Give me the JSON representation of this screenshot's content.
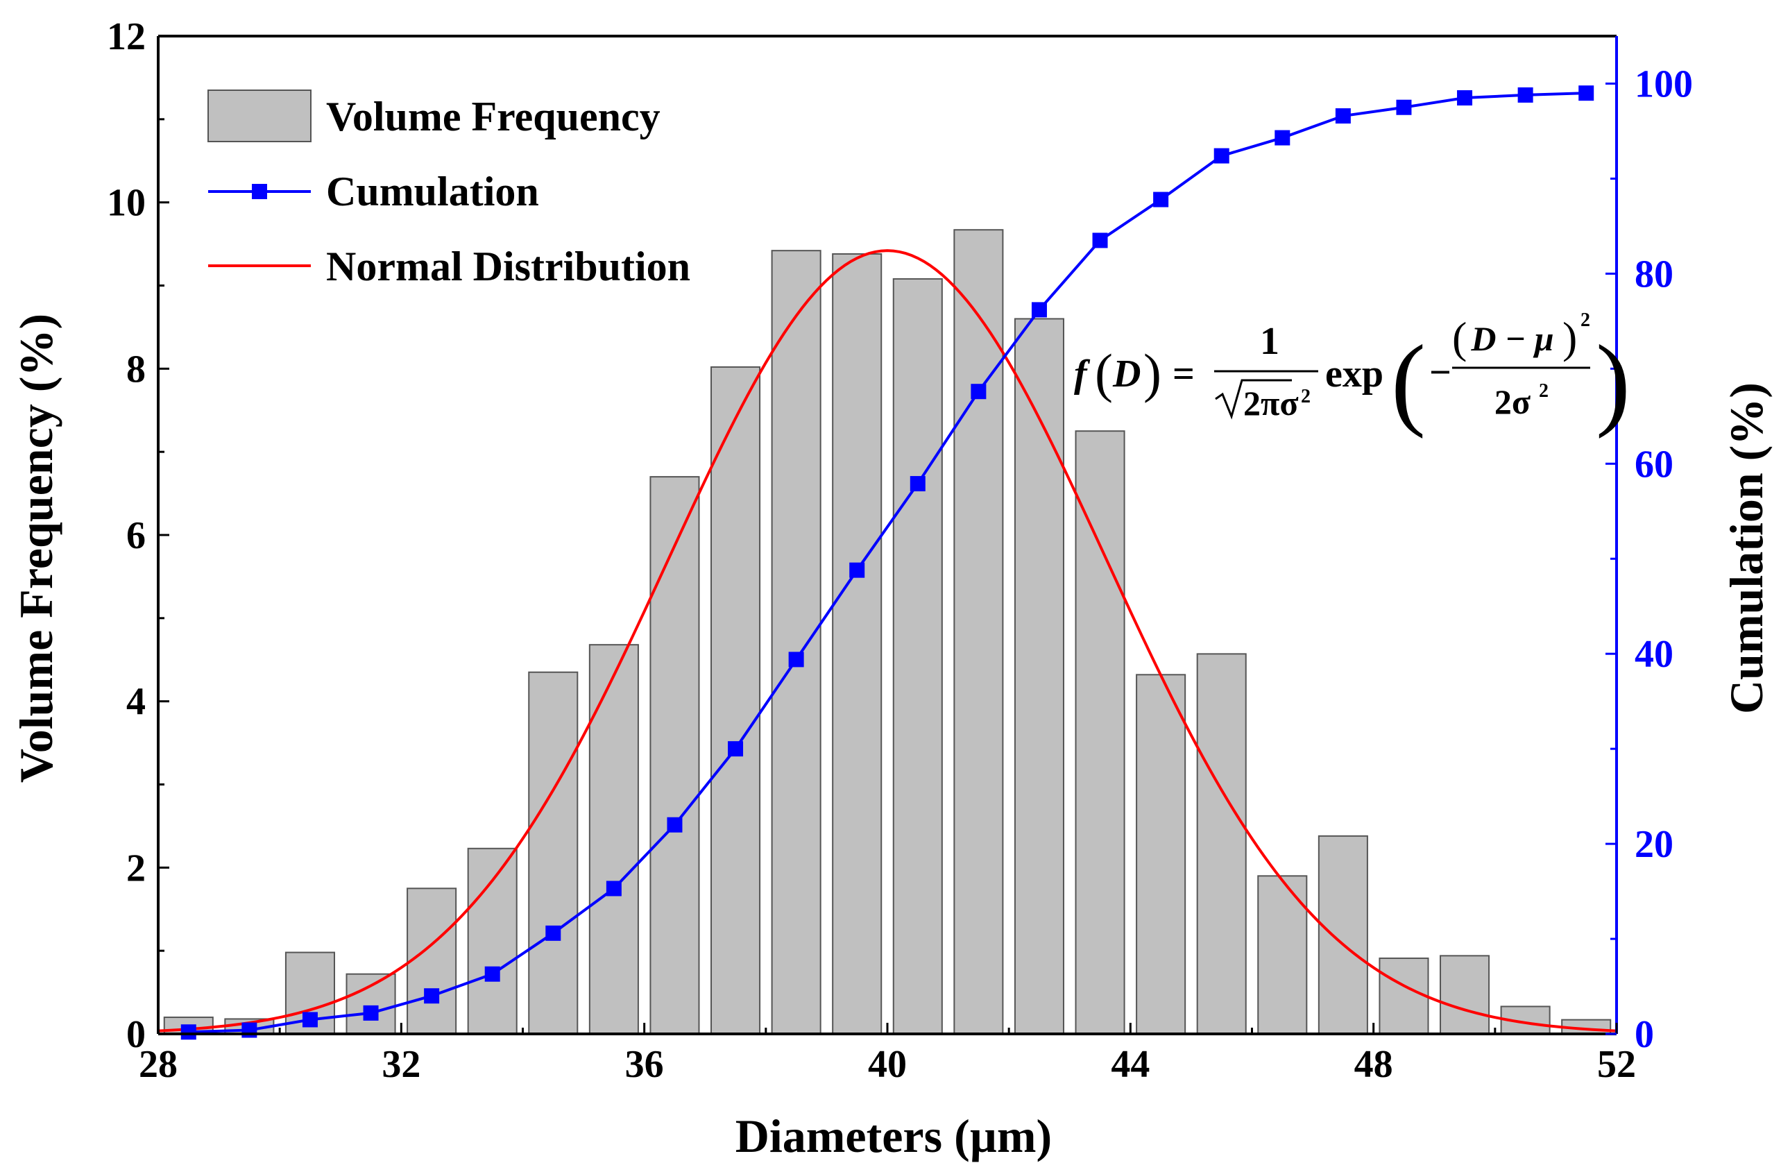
{
  "chart_data": {
    "type": "bar",
    "xlabel": "Diameters (µm)",
    "ylabel": "Volume Frequency (%)",
    "y2label": "Cumulation (%)",
    "xlim": [
      28,
      52
    ],
    "ylim": [
      0,
      12
    ],
    "y2lim": [
      0,
      105
    ],
    "xticks": [
      28,
      32,
      36,
      40,
      44,
      48,
      52
    ],
    "yticks": [
      0,
      2,
      4,
      6,
      8,
      10,
      12
    ],
    "y2ticks": [
      0,
      20,
      40,
      60,
      80,
      100
    ],
    "grid": false,
    "legend_position": "top-left",
    "colors": {
      "bar_fill": "#c0c0c0",
      "bar_stroke": "#555555",
      "cumulation": "#0000ff",
      "normal": "#ff0000",
      "axis_right": "#0000ff"
    },
    "series": [
      {
        "name": "Volume Frequency",
        "type": "bar",
        "x": [
          28.5,
          29.5,
          30.5,
          31.5,
          32.5,
          33.5,
          34.5,
          35.5,
          36.5,
          37.5,
          38.5,
          39.5,
          40.5,
          41.5,
          42.5,
          43.5,
          44.5,
          45.5,
          46.5,
          47.5,
          48.5,
          49.5,
          50.5,
          51.5
        ],
        "values": [
          0.2,
          0.18,
          0.98,
          0.72,
          1.75,
          2.23,
          4.35,
          4.68,
          6.7,
          8.02,
          9.42,
          9.38,
          9.08,
          9.67,
          8.6,
          7.25,
          4.32,
          4.57,
          1.9,
          2.38,
          0.91,
          0.94,
          0.33,
          0.17
        ]
      },
      {
        "name": "Cumulation",
        "type": "line",
        "axis": "right",
        "x": [
          28.5,
          29.5,
          30.5,
          31.5,
          32.5,
          33.5,
          34.5,
          35.5,
          36.5,
          37.5,
          38.5,
          39.5,
          40.5,
          41.5,
          42.5,
          43.5,
          44.5,
          45.5,
          46.5,
          47.5,
          48.5,
          49.5,
          50.5,
          51.5
        ],
        "values": [
          0.2,
          0.4,
          1.5,
          2.2,
          4.0,
          6.3,
          10.6,
          15.3,
          22.0,
          30.0,
          39.4,
          48.8,
          57.9,
          67.6,
          76.2,
          83.5,
          87.8,
          92.4,
          94.3,
          96.6,
          97.5,
          98.5,
          98.8,
          99.0
        ]
      },
      {
        "name": "Normal Distribution",
        "type": "curve",
        "mu": 40,
        "sigma": 3.6,
        "peak": 9.42
      }
    ],
    "annotations": {
      "formula": {
        "lhs_f": "f",
        "lhs_var": "D",
        "equals": "=",
        "numerator": "1",
        "sqrt_content": "2πσ",
        "sigma_sq": "2",
        "exp": "exp",
        "minus": "−",
        "inner_num": "D − μ",
        "inner_num_sq": "2",
        "inner_den": "2σ",
        "inner_den_sq": "2"
      }
    }
  }
}
